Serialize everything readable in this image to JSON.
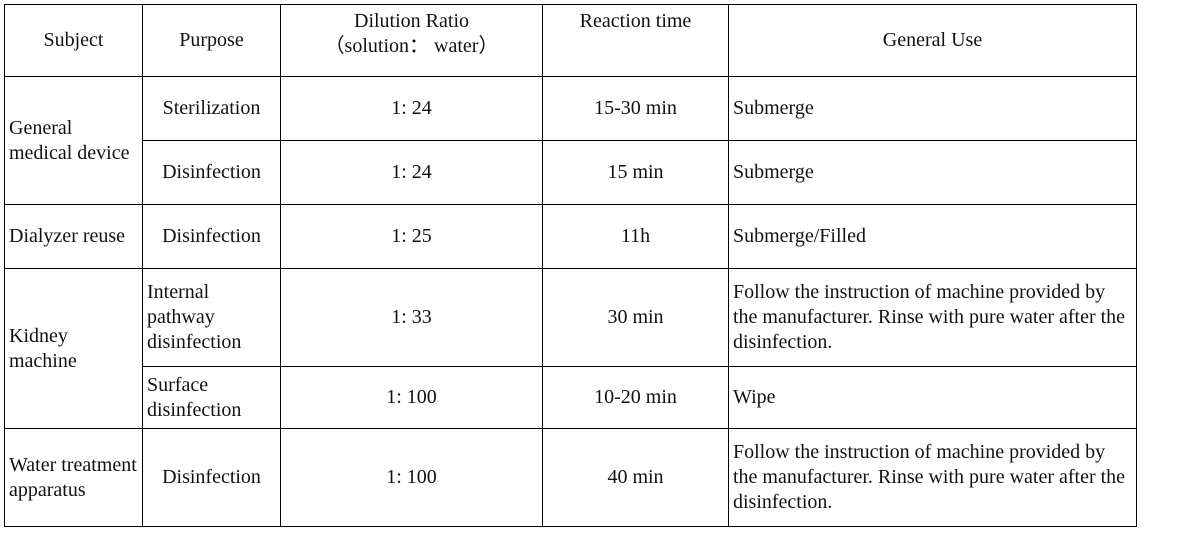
{
  "headers": {
    "subject": "Subject",
    "purpose": "Purpose",
    "dilution_line1": "Dilution Ratio",
    "dilution_line2": "（solution： water）",
    "reaction_time": "Reaction time",
    "general_use": "General Use"
  },
  "rows": [
    {
      "subject": "General medical device",
      "purpose": "Sterilization",
      "dilution": "1: 24",
      "time": "15-30 min",
      "use": "Submerge"
    },
    {
      "purpose": "Disinfection",
      "dilution": "1: 24",
      "time": "15 min",
      "use": "Submerge"
    },
    {
      "subject": "Dialyzer reuse",
      "purpose": "Disinfection",
      "dilution": "1: 25",
      "time": "11h",
      "use": "Submerge/Filled"
    },
    {
      "subject": "Kidney machine",
      "purpose": "Internal pathway disinfection",
      "dilution": "1: 33",
      "time": "30 min",
      "use": "Follow the instruction of machine provided by the manufacturer. Rinse with pure water after the disinfection."
    },
    {
      "purpose": "Surface disinfection",
      "dilution": "1: 100",
      "time": "10-20 min",
      "use": "Wipe"
    },
    {
      "subject": "Water treatment apparatus",
      "purpose": "Disinfection",
      "dilution": "1: 100",
      "time": "40 min",
      "use": "Follow the instruction of machine provided by the manufacturer. Rinse with pure water after the disinfection."
    }
  ]
}
